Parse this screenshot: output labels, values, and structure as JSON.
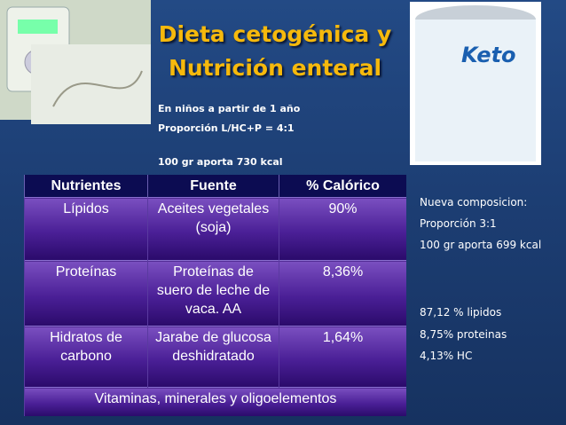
{
  "header": {
    "title": [
      "Dieta cetogénica y",
      "Nutrición enteral"
    ]
  },
  "intro": [
    "En niños a partir de 1 año",
    "Proporción  L/HC+P = 4:1",
    "100 gr aporta 730 kcal"
  ],
  "table": {
    "headers": [
      "Nutrientes",
      "Fuente",
      "% Calórico"
    ],
    "rows": [
      [
        "Lípidos",
        "Aceites vegetales (soja)",
        "90%"
      ],
      [
        "Proteínas",
        "Proteínas de suero de leche de vaca. AA",
        "8,36%"
      ],
      [
        "Hidratos de carbono",
        "Jarabe de glucosa deshidratado",
        "1,64%"
      ]
    ],
    "footer": "Vitaminas, minerales y oligoelementos"
  },
  "notes": {
    "top": [
      "Nueva composicion:",
      "Proporción 3:1",
      "100 gr aporta 699 kcal"
    ],
    "bottom": [
      "87,12 % lipidos",
      "8,75% proteinas",
      "4,13% HC"
    ]
  }
}
